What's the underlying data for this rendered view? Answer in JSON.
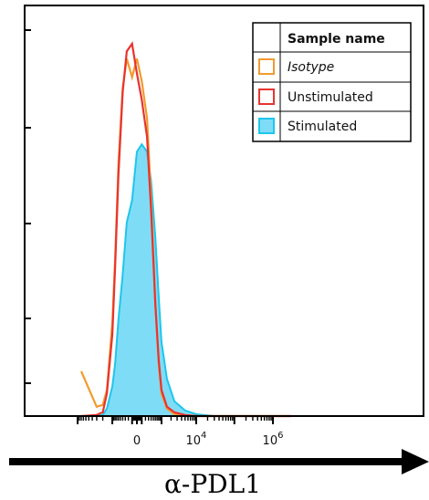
{
  "chart_data": {
    "type": "area",
    "title": "",
    "xlabel": "α-PDL1",
    "ylabel": "",
    "x_scale": "biexponential",
    "x_tick_labels": [
      {
        "value": 0,
        "label": "0"
      },
      {
        "value": 10000,
        "base": "10",
        "exp": "4"
      },
      {
        "value": 1000000,
        "base": "10",
        "exp": "6"
      }
    ],
    "grid": false,
    "legend": {
      "title": "Sample name",
      "placement": "top-right",
      "entries": [
        {
          "name": "Isotype",
          "color": "#f29b30",
          "filled": false,
          "italic": true
        },
        {
          "name": "Unstimulated",
          "color": "#e8342f",
          "filled": false,
          "italic": false
        },
        {
          "name": "Stimulated",
          "color": "#1ec6ec",
          "fill": "#7fdcf6",
          "filled": true,
          "italic": false
        }
      ]
    },
    "x": [
      -8000,
      -3000,
      -2000,
      -1500,
      -1000,
      -800,
      -600,
      -400,
      -250,
      -100,
      0,
      100,
      250,
      400,
      600,
      800,
      1000,
      1500,
      2500,
      5000,
      10000,
      30000,
      100000,
      300000,
      1000000,
      3000000
    ],
    "series": [
      {
        "name": "Isotype",
        "values": [
          12,
          2.5,
          3,
          7,
          25,
          42,
          68,
          88,
          96,
          91,
          96,
          90,
          80,
          58,
          30,
          14,
          6,
          2,
          0.5,
          0,
          0,
          0,
          0,
          0,
          0,
          0
        ]
      },
      {
        "name": "Unstimulated",
        "values": [
          0,
          0.3,
          1,
          6,
          22,
          40,
          65,
          87,
          98,
          100,
          92,
          85,
          75,
          55,
          30,
          15,
          7,
          2.5,
          1,
          0.3,
          0,
          0,
          0,
          0,
          0,
          0
        ]
      },
      {
        "name": "Stimulated",
        "values": [
          0,
          0,
          0.3,
          2,
          8,
          14,
          26,
          38,
          52,
          58,
          71,
          73,
          71,
          63,
          48,
          32,
          20,
          10,
          4,
          1.5,
          0.5,
          0,
          0,
          0,
          0,
          0
        ]
      }
    ],
    "ylim": [
      0,
      100
    ]
  }
}
